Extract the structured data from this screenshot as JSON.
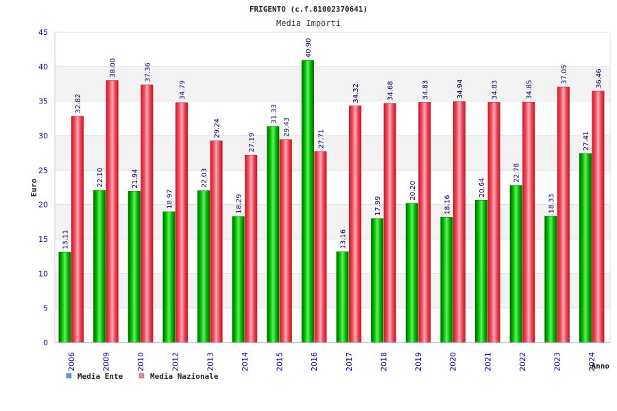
{
  "chart_data": {
    "type": "bar",
    "title": "FRIGENTO (c.f.81002370641)",
    "subtitle": "Media Importi",
    "xlabel": "Anno",
    "ylabel": "Euro",
    "ylim": [
      0,
      45
    ],
    "yticks": [
      0,
      5,
      10,
      15,
      20,
      25,
      30,
      35,
      40,
      45
    ],
    "grid": true,
    "legend_position": "bottom-left",
    "categories": [
      "2006",
      "2009",
      "2010",
      "2012",
      "2013",
      "2014",
      "2015",
      "2016",
      "2017",
      "2018",
      "2019",
      "2020",
      "2021",
      "2022",
      "2023",
      "2024"
    ],
    "series": [
      {
        "name": "Media Ente",
        "legend_color": "#5599ee",
        "bar_color": "#00aa00",
        "values": [
          13.11,
          22.1,
          21.94,
          18.97,
          22.03,
          18.29,
          31.33,
          40.9,
          13.16,
          17.99,
          20.2,
          18.16,
          20.64,
          22.78,
          18.33,
          27.41
        ],
        "labels": [
          "13.11",
          "22.10",
          "21.94",
          "18.97",
          "22.03",
          "18.29",
          "31.33",
          "40.90",
          "13.16",
          "17.99",
          "20.20",
          "18.16",
          "20.64",
          "22.78",
          "18.33",
          "27.41"
        ]
      },
      {
        "name": "Media Nazionale",
        "legend_color": "#ee88aa",
        "bar_color": "#ee2233",
        "values": [
          32.82,
          38.0,
          37.36,
          34.79,
          29.24,
          27.19,
          29.43,
          27.71,
          34.32,
          34.68,
          34.83,
          34.94,
          34.83,
          34.85,
          37.05,
          36.46
        ],
        "labels": [
          "32.82",
          "38.00",
          "37.36",
          "34.79",
          "29.24",
          "27.19",
          "29.43",
          "27.71",
          "34.32",
          "34.68",
          "34.83",
          "34.94",
          "34.83",
          "34.85",
          "37.05",
          "36.46"
        ]
      }
    ]
  }
}
